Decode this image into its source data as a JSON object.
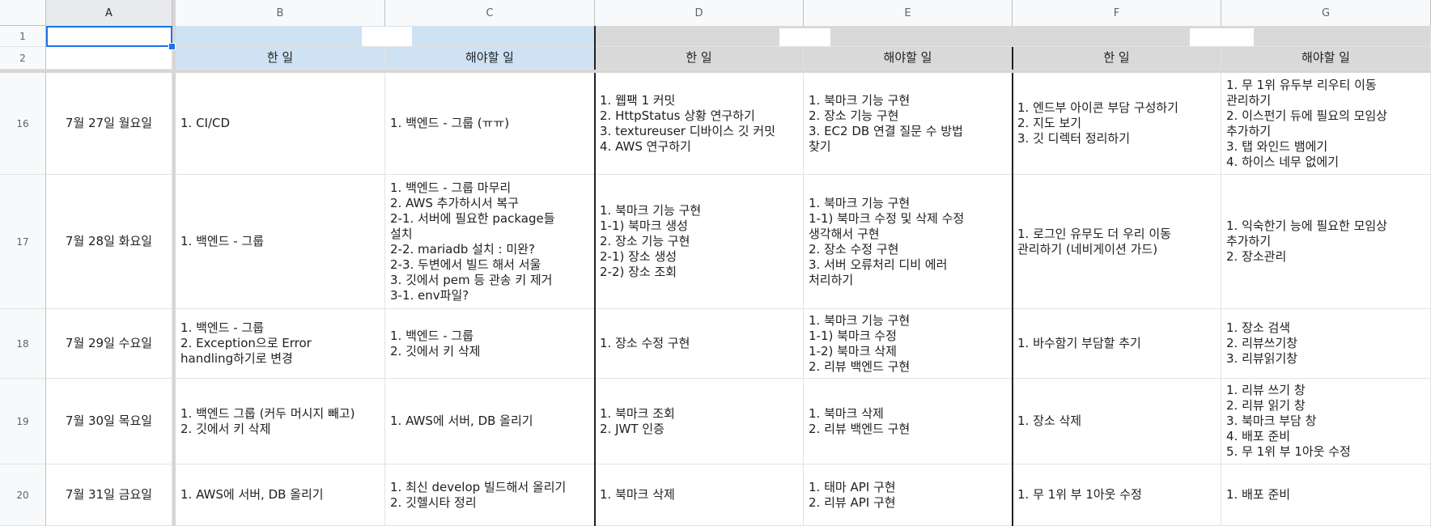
{
  "columns": [
    "A",
    "B",
    "C",
    "D",
    "E",
    "F",
    "G"
  ],
  "header_rows": [
    "1",
    "2"
  ],
  "sub_headers": [
    "한 일",
    "해야할 일",
    "한 일",
    "해야할 일",
    "한 일",
    "해야할 일"
  ],
  "rows": [
    {
      "num": "16",
      "date": "7월 27일 월요일",
      "cells": [
        "1. CI/CD",
        "1. 백엔드 - 그룹 (ㅠㅠ)",
        "1. 웹팩 1 커밋\n2. HttpStatus 상황 연구하기\n3. textureuser 디바이스 깃 커밋\n4. AWS 연구하기",
        "1. 북마크 기능 구현\n2. 장소 기능 구현\n3. EC2 DB 연결 질문 수 방법\n찾기",
        "1. 엔드부 아이콘 부담 구성하기\n2. 지도 보기\n3. 깃 디렉터 정리하기",
        "1. 무 1위 유두부 리우티 이동\n관리하기\n2. 이스펀기 듀에 필요의 모임상\n추가하기\n3. 탭 와인드 뱀에기\n4. 하이스 네무 없에기"
      ]
    },
    {
      "num": "17",
      "date": "7월 28일 화요일",
      "cells": [
        "1. 백엔드 - 그룹",
        "1. 백엔드 - 그룹 마무리\n2. AWS 추가하시서 복구\n2-1. 서버에 필요한 package들\n설치\n2-2. mariadb 설치 : 미완?\n2-3. 두변에서 빌드 해서 서울\n3. 깃에서 pem 등 관송 키 제거\n3-1. env파일?",
        "1. 북마크 기능 구현\n1-1) 북마크 생성\n2. 장소 기능 구현\n2-1) 장소 생성\n2-2) 장소 조회",
        "1. 북마크 기능 구현\n1-1) 북마크 수정 및 삭제 수정\n생각해서 구현\n2. 장소 수정 구현\n3. 서버 오류처리 디비 에러\n처리하기",
        "1. 로그인 유무도 더 우리 이동\n관리하기 (네비게이션 가드)",
        "1. 익숙한기 능에 필요한 모임상\n추가하기\n2. 장소관리"
      ]
    },
    {
      "num": "18",
      "date": "7월 29일 수요일",
      "cells": [
        "1. 백엔드 - 그룹\n2. Exception으로 Error\nhandling하기로 변경",
        "1. 백엔드 - 그룹\n2. 깃에서 키 삭제",
        "1. 장소 수정 구현",
        "1. 북마크 기능 구현\n1-1) 북마크 수정\n1-2) 북마크 삭제\n2. 리뷰 백엔드 구현",
        "1. 바수함기 부담할 추기",
        "1. 장소 검색\n2. 리뷰쓰기창\n3. 리뷰읽기창"
      ]
    },
    {
      "num": "19",
      "date": "7월 30일 목요일",
      "cells": [
        "1. 백엔드 그룹 (커두 머시지 빼고)\n2. 깃에서 키 삭제",
        "1. AWS에 서버, DB 올리기",
        "1. 북마크 조회\n2. JWT 인증",
        "1. 북마크 삭제\n2. 리뷰 백엔드 구현",
        "1. 장소 삭제",
        "1. 리뷰 쓰기 창\n2. 리뷰 읽기 창\n3. 북마크 부담 창\n4. 배포 준비\n5. 무 1위 부 1아웃 수정"
      ]
    },
    {
      "num": "20",
      "date": "7월 31일 금요일",
      "cells": [
        "1. AWS에 서버, DB 올리기",
        "1. 최신 develop 빌드해서 올리기\n2. 깃헬시타 정리",
        "1. 북마크 삭제",
        "1. 태마 API 구현\n2. 리뷰 API 구현",
        "1. 무 1위 부 1아웃 수정",
        "1. 배포 준비"
      ]
    }
  ]
}
